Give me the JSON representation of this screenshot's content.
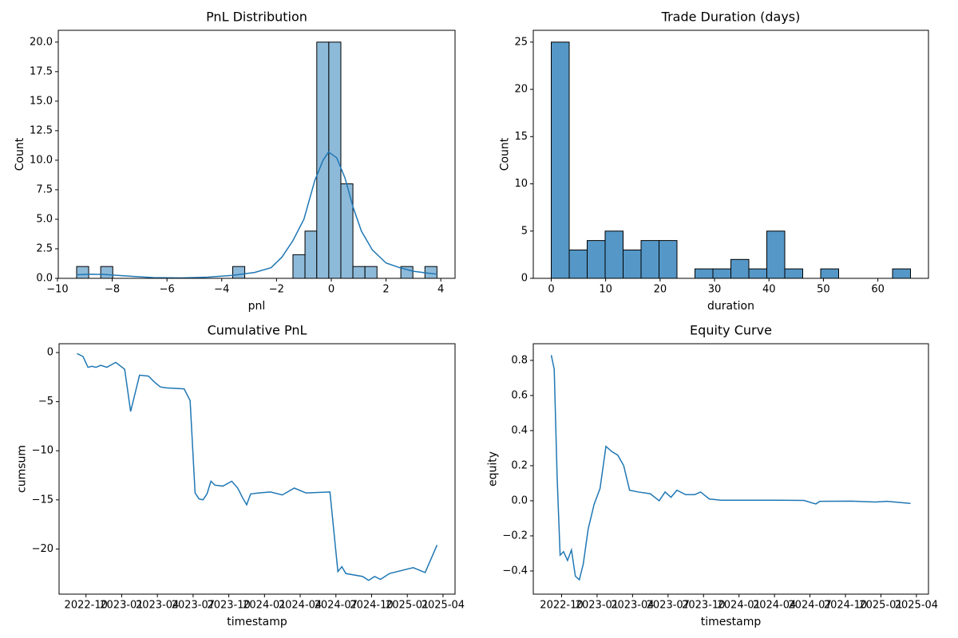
{
  "chart_data": [
    {
      "type": "histogram",
      "title": "PnL Distribution",
      "x_label": "pnl",
      "y_label": "Count",
      "bins": [
        -9.3,
        -8.86,
        -8.42,
        -7.98,
        -7.55,
        -7.11,
        -6.67,
        -6.23,
        -5.79,
        -5.35,
        -4.91,
        -4.47,
        -4.04,
        -3.6,
        -3.16,
        -2.72,
        -2.28,
        -1.84,
        -1.4,
        -0.96,
        -0.53,
        -0.09,
        0.35,
        0.79,
        1.23,
        1.67,
        2.11,
        2.54,
        2.98,
        3.42,
        3.86
      ],
      "counts": [
        1,
        0,
        1,
        0,
        0,
        0,
        0,
        0,
        0,
        0,
        0,
        0,
        0,
        1,
        0,
        0,
        0,
        0,
        2,
        4,
        20,
        20,
        8,
        1,
        1,
        0,
        0,
        1,
        0,
        1
      ],
      "color": "#8ebad9",
      "kde": {
        "x": [
          -9.3,
          -8.8,
          -8.3,
          -7.5,
          -6.5,
          -5.5,
          -4.5,
          -3.6,
          -2.8,
          -2.2,
          -1.8,
          -1.4,
          -1.0,
          -0.6,
          -0.3,
          -0.1,
          0.2,
          0.5,
          0.8,
          1.1,
          1.5,
          2.0,
          2.5,
          3.0,
          3.5,
          3.86
        ],
        "y": [
          0.3,
          0.35,
          0.33,
          0.2,
          0.06,
          0.03,
          0.1,
          0.25,
          0.5,
          0.9,
          1.8,
          3.2,
          5.0,
          8.3,
          10.0,
          10.7,
          10.2,
          8.5,
          6.0,
          4.0,
          2.4,
          1.3,
          0.9,
          0.6,
          0.45,
          0.35
        ],
        "color": "#1f77b4"
      },
      "xlim": [
        -9.97,
        4.52
      ],
      "ylim": [
        0,
        21
      ],
      "xticks": [
        {
          "value": -10,
          "label": "−10"
        },
        {
          "value": -8,
          "label": "−8"
        },
        {
          "value": -6,
          "label": "−6"
        },
        {
          "value": -4,
          "label": "−4"
        },
        {
          "value": -2,
          "label": "−2"
        },
        0,
        2,
        4
      ],
      "yticks": [
        {
          "value": 0,
          "label": "0.0"
        },
        2.5,
        {
          "value": 5,
          "label": "5.0"
        },
        7.5,
        {
          "value": 10,
          "label": "10.0"
        },
        12.5,
        {
          "value": 15,
          "label": "15.0"
        },
        17.5,
        {
          "value": 20,
          "label": "20.0"
        }
      ]
    },
    {
      "type": "histogram",
      "title": "Trade Duration (days)",
      "x_label": "duration",
      "y_label": "Count",
      "bins": [
        0,
        3.3,
        6.6,
        9.9,
        13.2,
        16.5,
        19.8,
        23.1,
        26.4,
        29.7,
        33,
        36.3,
        39.6,
        42.9,
        46.2,
        49.5,
        52.8,
        56.1,
        59.4,
        62.7,
        66
      ],
      "counts": [
        25,
        3,
        4,
        5,
        3,
        4,
        4,
        0,
        1,
        1,
        2,
        1,
        5,
        1,
        0,
        1,
        0,
        0,
        0,
        1
      ],
      "color": "#5597c6",
      "xlim": [
        -3.3,
        69.3
      ],
      "ylim": [
        0,
        26.25
      ],
      "xticks": [
        0,
        10,
        20,
        30,
        40,
        50,
        60
      ],
      "yticks": [
        0,
        5,
        10,
        15,
        20,
        25
      ]
    },
    {
      "type": "line",
      "title": "Cumulative PnL",
      "x_label": "timestamp",
      "y_label": "cumsum",
      "color": "#1f77b4",
      "x": [
        "2022-09",
        "2022-09",
        "2022-10",
        "2022-10",
        "2022-10",
        "2022-11",
        "2022-11",
        "2022-12",
        "2023-01",
        "2023-01",
        "2023-02",
        "2023-03",
        "2023-03",
        "2023-04",
        "2023-04",
        "2023-06",
        "2023-06",
        "2023-07",
        "2023-07",
        "2023-07",
        "2023-08",
        "2023-08",
        "2023-08",
        "2023-09",
        "2023-10",
        "2023-10",
        "2023-11",
        "2023-11",
        "2023-11",
        "2023-12",
        "2024-01",
        "2024-02",
        "2024-03",
        "2024-04",
        "2024-06",
        "2024-07",
        "2024-07",
        "2024-07",
        "2024-09",
        "2024-09",
        "2024-10",
        "2024-10",
        "2024-11",
        "2025-01",
        "2025-02",
        "2025-03"
      ],
      "values": [
        -0.1,
        -0.4,
        -1.5,
        -1.4,
        -1.5,
        -1.3,
        -1.5,
        -1.0,
        -1.7,
        -6.0,
        -2.3,
        -2.4,
        -3.0,
        -3.5,
        -3.6,
        -3.7,
        -4.9,
        -14.3,
        -14.9,
        -15.0,
        -14.4,
        -13.1,
        -13.5,
        -13.6,
        -13.1,
        -13.8,
        -14.8,
        -15.5,
        -14.4,
        -14.3,
        -14.2,
        -14.5,
        -13.8,
        -14.3,
        -14.2,
        -22.3,
        -21.8,
        -22.5,
        -22.8,
        -23.2,
        -22.8,
        -23.1,
        -22.5,
        -21.9,
        -22.4,
        -19.6
      ],
      "ylim": [
        -24.6,
        0.9
      ],
      "xticks": [
        "2022-10",
        "2023-01",
        "2023-04",
        "2023-07",
        "2023-10",
        "2024-01",
        "2024-04",
        "2024-07",
        "2024-10",
        "2025-01",
        "2025-04"
      ],
      "yticks": [
        {
          "value": -20,
          "label": "−20"
        },
        {
          "value": -15,
          "label": "−15"
        },
        {
          "value": -10,
          "label": "−10"
        },
        {
          "value": -5,
          "label": "−5"
        },
        0
      ]
    },
    {
      "type": "line",
      "title": "Equity Curve",
      "x_label": "timestamp",
      "y_label": "equity",
      "color": "#1f77b4",
      "x": [
        "2022-09",
        "2022-09",
        "2022-09",
        "2022-09",
        "2022-10",
        "2022-10",
        "2022-10",
        "2022-11",
        "2022-11",
        "2022-11",
        "2022-12",
        "2022-12",
        "2023-01",
        "2023-01",
        "2023-02",
        "2023-02",
        "2023-03",
        "2023-03",
        "2023-04",
        "2023-05",
        "2023-06",
        "2023-06",
        "2023-07",
        "2023-07",
        "2023-08",
        "2023-09",
        "2023-09",
        "2023-10",
        "2023-11",
        "2024-01",
        "2024-04",
        "2024-06",
        "2024-07",
        "2024-07",
        "2024-07",
        "2024-10",
        "2024-12",
        "2025-01",
        "2025-03"
      ],
      "values": [
        0.83,
        0.75,
        0.13,
        -0.31,
        -0.29,
        -0.34,
        -0.28,
        -0.43,
        -0.45,
        -0.36,
        -0.16,
        -0.02,
        0.07,
        0.31,
        0.28,
        0.26,
        0.2,
        0.06,
        0.05,
        0.04,
        0.0,
        0.05,
        0.02,
        0.06,
        0.035,
        0.035,
        0.05,
        0.01,
        0.003,
        0.003,
        0.003,
        0.002,
        -0.012,
        -0.018,
        -0.003,
        -0.002,
        -0.007,
        -0.003,
        -0.015
      ],
      "ylim": [
        -0.532,
        0.895
      ],
      "xticks": [
        "2022-10",
        "2023-01",
        "2023-04",
        "2023-07",
        "2023-10",
        "2024-01",
        "2024-04",
        "2024-07",
        "2024-10",
        "2025-01",
        "2025-04"
      ],
      "yticks": [
        {
          "value": -0.4,
          "label": "−0.4"
        },
        {
          "value": -0.2,
          "label": "−0.2"
        },
        {
          "value": 0,
          "label": "0.0"
        },
        0.2,
        0.4,
        0.6,
        0.8
      ]
    }
  ]
}
